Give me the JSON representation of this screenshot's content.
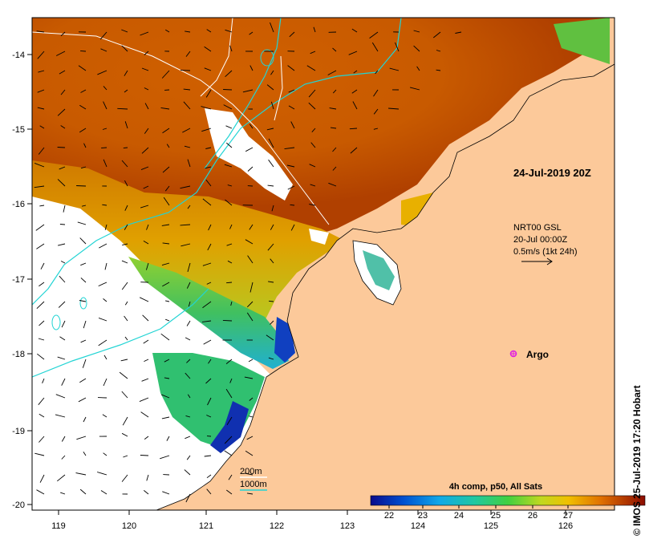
{
  "map": {
    "timestamp": "24-Jul-2019 20Z",
    "current_product": "NRT00 GSL",
    "current_date": "20-Jul 00:00Z",
    "scale_arrow_label": "0.5m/s (1kt 24h)",
    "argo_label": "Argo",
    "depth_label_200": "200m",
    "depth_label_1000": "1000m",
    "colorbar_title": "4h comp, p50, All Sats",
    "colorbar_ticks": [
      "22",
      "23",
      "24",
      "25",
      "26",
      "27"
    ],
    "credit": "© IMOS 25-Jul-2019 17:20 Hobart",
    "x_ticks": [
      "119",
      "120",
      "121",
      "122",
      "123",
      "124",
      "125",
      "126"
    ],
    "y_ticks": [
      "-14",
      "-15",
      "-16",
      "-17",
      "-18",
      "-19",
      "-20"
    ],
    "colors": {
      "land": "#fcc99a",
      "no_data": "#ffffff",
      "isobath_200": "#ffffff",
      "isobath_1000": "#22d4d4",
      "argo": "#e020e0",
      "sst_scale": [
        "#0a0a8c",
        "#0050d0",
        "#10a8e8",
        "#20d080",
        "#a0d820",
        "#f0c000",
        "#e07000",
        "#c03000",
        "#8c0c00"
      ]
    }
  }
}
